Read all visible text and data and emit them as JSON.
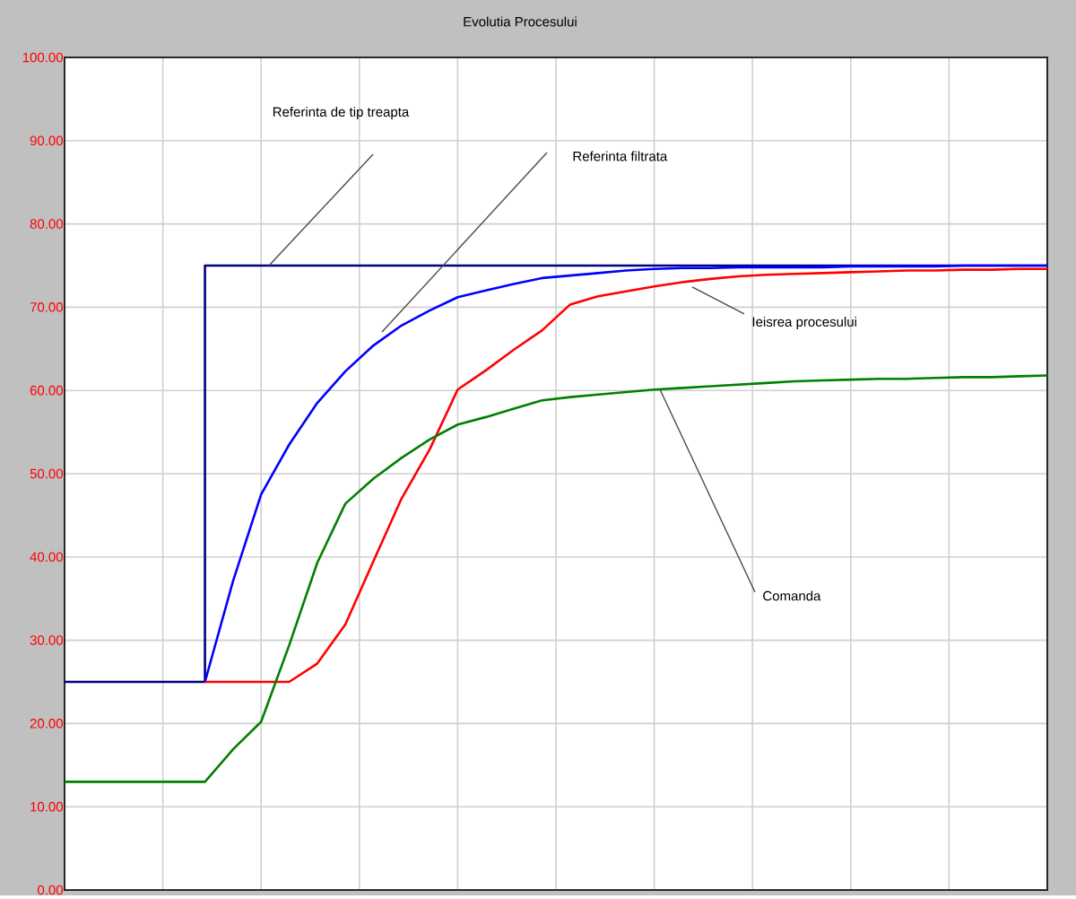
{
  "chart_data": {
    "type": "line",
    "title": "Evolutia Procesului",
    "categories": [
      null,
      null,
      null,
      null,
      null,
      null,
      null,
      null,
      null,
      null,
      null,
      null,
      null,
      null,
      null,
      null,
      null,
      null,
      null,
      null,
      null,
      null,
      null,
      null,
      null,
      null,
      null,
      null,
      null,
      null,
      null,
      null,
      null,
      null,
      null,
      null
    ],
    "ylim": [
      0,
      100
    ],
    "yticks": [
      {
        "value": 0,
        "label": "0.00"
      },
      {
        "value": 10,
        "label": "10.00"
      },
      {
        "value": 20,
        "label": "20.00"
      },
      {
        "value": 30,
        "label": "30.00"
      },
      {
        "value": 40,
        "label": "40.00"
      },
      {
        "value": 50,
        "label": "50.00"
      },
      {
        "value": 60,
        "label": "60.00"
      },
      {
        "value": 70,
        "label": "70.00"
      },
      {
        "value": 80,
        "label": "80.00"
      },
      {
        "value": 90,
        "label": "90.00"
      },
      {
        "value": 100,
        "label": "100.00"
      }
    ],
    "tick_labels": "y",
    "grid": true,
    "series": [
      {
        "type": "step",
        "color": "#000080",
        "values": [
          25,
          25,
          25,
          25,
          25,
          75,
          75,
          75,
          75,
          75,
          75,
          75,
          75,
          75,
          75,
          75,
          75,
          75,
          75,
          75,
          75,
          75,
          75,
          75,
          75,
          75,
          75,
          75,
          75,
          75,
          75,
          75,
          75,
          75,
          75,
          75
        ]
      },
      {
        "color": "#0000ff",
        "values": [
          null,
          null,
          null,
          null,
          null,
          25,
          37.1,
          47.5,
          53.5,
          58.5,
          62.3,
          65.4,
          67.8,
          69.6,
          71.2,
          72.0,
          72.8,
          73.5,
          73.8,
          74.1,
          74.4,
          74.6,
          74.7,
          74.7,
          74.8,
          74.8,
          74.8,
          74.8,
          74.9,
          74.9,
          74.9,
          74.9,
          75,
          75,
          75,
          75
        ]
      },
      {
        "color": "#ff0000",
        "values": [
          null,
          null,
          null,
          null,
          null,
          25,
          25,
          25,
          25,
          27.2,
          31.9,
          39.5,
          47.0,
          52.9,
          60.1,
          62.4,
          64.9,
          67.2,
          70.3,
          71.3,
          71.9,
          72.5,
          73.0,
          73.4,
          73.7,
          73.9,
          74.0,
          74.1,
          74.2,
          74.3,
          74.4,
          74.4,
          74.5,
          74.5,
          74.6,
          74.6
        ]
      },
      {
        "color": "#008000",
        "values": [
          13,
          13,
          13,
          13,
          13,
          13,
          16.9,
          20.2,
          29.4,
          39.3,
          46.4,
          49.4,
          51.9,
          54.1,
          55.9,
          56.8,
          57.8,
          58.8,
          59.2,
          59.5,
          59.8,
          60.1,
          60.3,
          60.5,
          60.7,
          60.9,
          61.1,
          61.2,
          61.3,
          61.4,
          61.4,
          61.5,
          61.6,
          61.6,
          61.7,
          61.8
        ]
      }
    ],
    "annotations": [
      "Referinta de tip treapta",
      "Referinta filtrata",
      "Ieisrea procesului",
      "Comanda"
    ]
  }
}
